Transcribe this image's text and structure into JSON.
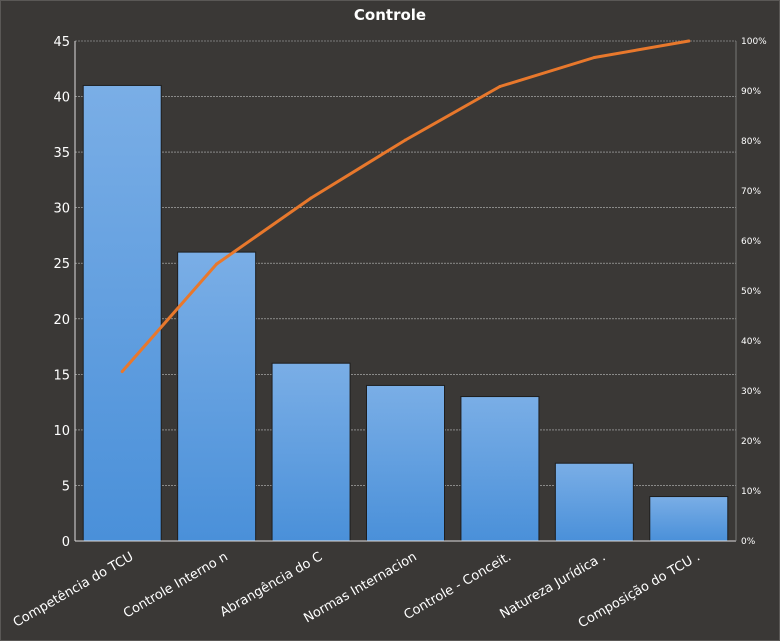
{
  "chart_data": {
    "type": "bar",
    "title": "Controle",
    "categories": [
      "Competência do TCU",
      "Controle Interno n",
      "Abrangência do C",
      "Normas Internacion",
      "Controle - Conceit.",
      "Natureza Jurídica  .",
      "Composição do TCU ."
    ],
    "series": [
      {
        "type": "bar",
        "values": [
          41,
          26,
          16,
          14,
          13,
          7,
          4
        ]
      },
      {
        "type": "line",
        "axis": "secondary",
        "values": [
          33.9,
          55.4,
          68.6,
          80.2,
          90.9,
          96.7,
          100.0
        ]
      }
    ],
    "ylim": [
      0,
      45
    ],
    "yticks": [
      0,
      5,
      10,
      15,
      20,
      25,
      30,
      35,
      40,
      45
    ],
    "y2lim": [
      0,
      100
    ],
    "y2ticks": [
      "0%",
      "10%",
      "20%",
      "30%",
      "40%",
      "50%",
      "60%",
      "70%",
      "80%",
      "90%",
      "100%"
    ],
    "grid": true,
    "colors": {
      "background": "#3a3836",
      "bar": "#4a90d9",
      "bar_top": "#7aaee6",
      "line": "#e8782c",
      "grid": "#bbbbbb",
      "text": "#ffffff"
    }
  }
}
